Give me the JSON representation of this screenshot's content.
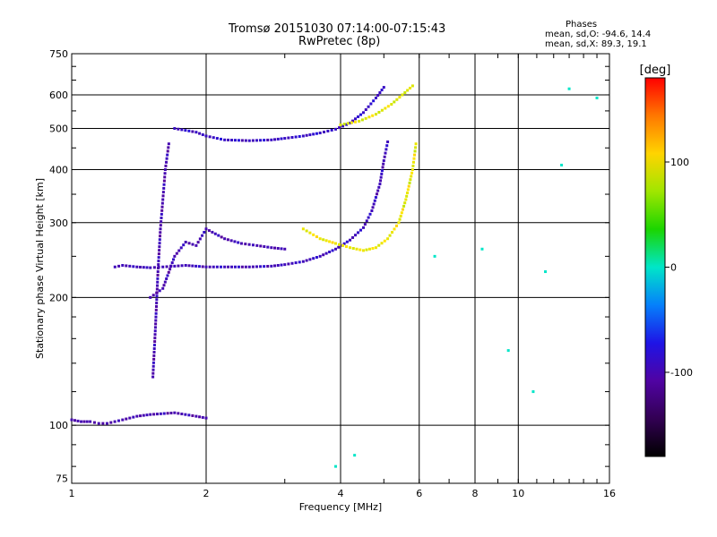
{
  "header": {
    "title": "Tromsø 20151030 07:14:00-07:15:43",
    "subtitle": "RwPretec (8p)"
  },
  "stats": {
    "heading": "Phases",
    "line_o": "mean, sd,O: -94.6, 14.4",
    "line_x": "mean, sd,X:  89.3, 19.1"
  },
  "chart_data": {
    "type": "scatter",
    "xlabel": "Frequency [MHz]",
    "ylabel": "Stationary phase Virtual Height [km]",
    "xscale": "log",
    "yscale": "log",
    "xlim": [
      1,
      16
    ],
    "ylim": [
      73,
      750
    ],
    "xticks": [
      1,
      2,
      4,
      6,
      8,
      10,
      16
    ],
    "yticks": [
      75,
      100,
      200,
      300,
      400,
      500,
      600,
      750
    ],
    "grid": true,
    "colorbar": {
      "label": "[deg]",
      "range": [
        -180,
        180
      ],
      "ticks": [
        100,
        0,
        -100
      ],
      "position": "right"
    },
    "point_groups": [
      {
        "note": "O-mode E/F1 trace",
        "phase_deg": -95,
        "points": [
          [
            1.25,
            236
          ],
          [
            1.3,
            238
          ],
          [
            1.4,
            236
          ],
          [
            1.5,
            235
          ],
          [
            1.6,
            236
          ],
          [
            1.7,
            237
          ],
          [
            1.8,
            238
          ],
          [
            2.0,
            236
          ],
          [
            2.2,
            236
          ],
          [
            2.5,
            236
          ],
          [
            2.8,
            237
          ],
          [
            3.0,
            239
          ],
          [
            3.3,
            243
          ],
          [
            3.6,
            250
          ],
          [
            3.9,
            260
          ],
          [
            4.2,
            273
          ],
          [
            4.5,
            292
          ],
          [
            4.7,
            320
          ],
          [
            4.9,
            370
          ],
          [
            5.0,
            420
          ],
          [
            5.1,
            465
          ]
        ]
      },
      {
        "note": "O-mode F2 upper trace",
        "phase_deg": -90,
        "points": [
          [
            1.7,
            500
          ],
          [
            1.9,
            490
          ],
          [
            2.0,
            480
          ],
          [
            2.2,
            470
          ],
          [
            2.5,
            468
          ],
          [
            2.8,
            470
          ],
          [
            3.0,
            474
          ],
          [
            3.3,
            480
          ],
          [
            3.6,
            488
          ],
          [
            3.9,
            498
          ],
          [
            4.2,
            515
          ],
          [
            4.5,
            545
          ],
          [
            4.8,
            590
          ],
          [
            5.0,
            625
          ]
        ]
      },
      {
        "note": "O-mode lower spread",
        "phase_deg": -100,
        "points": [
          [
            1.5,
            200
          ],
          [
            1.6,
            210
          ],
          [
            1.7,
            250
          ],
          [
            1.8,
            270
          ],
          [
            1.9,
            265
          ],
          [
            2.0,
            290
          ],
          [
            2.2,
            275
          ],
          [
            2.4,
            268
          ],
          [
            2.6,
            265
          ],
          [
            2.8,
            262
          ],
          [
            3.0,
            260
          ]
        ]
      },
      {
        "note": "near-vertical trace ~1.55 MHz",
        "phase_deg": -100,
        "points": [
          [
            1.52,
            130
          ],
          [
            1.54,
            170
          ],
          [
            1.56,
            230
          ],
          [
            1.58,
            290
          ],
          [
            1.6,
            340
          ],
          [
            1.62,
            400
          ],
          [
            1.65,
            460
          ]
        ]
      },
      {
        "note": "E-layer trace",
        "phase_deg": -100,
        "points": [
          [
            1.0,
            103
          ],
          [
            1.05,
            102
          ],
          [
            1.1,
            102
          ],
          [
            1.15,
            101
          ],
          [
            1.2,
            101
          ],
          [
            1.3,
            103
          ],
          [
            1.4,
            105
          ],
          [
            1.5,
            106
          ],
          [
            1.7,
            107
          ],
          [
            1.9,
            105
          ],
          [
            2.0,
            104
          ]
        ]
      },
      {
        "note": "X-mode lower trace",
        "phase_deg": 95,
        "points": [
          [
            3.3,
            290
          ],
          [
            3.6,
            275
          ],
          [
            3.9,
            268
          ],
          [
            4.2,
            262
          ],
          [
            4.5,
            258
          ],
          [
            4.8,
            262
          ],
          [
            5.1,
            275
          ],
          [
            5.4,
            300
          ],
          [
            5.6,
            340
          ],
          [
            5.8,
            400
          ],
          [
            5.9,
            460
          ]
        ]
      },
      {
        "note": "X-mode upper trace",
        "phase_deg": 90,
        "points": [
          [
            4.0,
            510
          ],
          [
            4.4,
            520
          ],
          [
            4.8,
            540
          ],
          [
            5.2,
            570
          ],
          [
            5.5,
            600
          ],
          [
            5.8,
            630
          ]
        ]
      },
      {
        "note": "sparse noise",
        "phase_deg": 0,
        "points": [
          [
            3.9,
            80
          ],
          [
            4.3,
            85
          ],
          [
            6.5,
            250
          ],
          [
            8.3,
            260
          ],
          [
            9.5,
            150
          ],
          [
            10.8,
            120
          ],
          [
            11.5,
            230
          ],
          [
            12.5,
            410
          ],
          [
            13.0,
            620
          ],
          [
            15.0,
            590
          ]
        ]
      }
    ]
  }
}
